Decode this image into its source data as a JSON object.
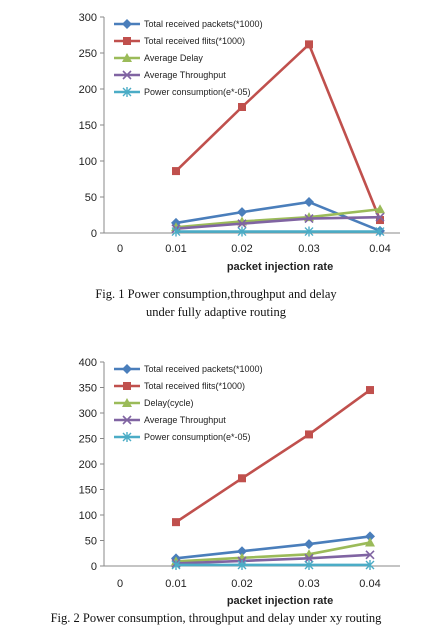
{
  "chart_data": [
    {
      "type": "line",
      "x": [
        0.01,
        0.02,
        0.03,
        0.04
      ],
      "x_ticks": [
        "0",
        "0.01",
        "0.02",
        "0.03",
        "0.04"
      ],
      "y_ticks": [
        "0",
        "50",
        "100",
        "150",
        "200",
        "250",
        "300"
      ],
      "ylim": [
        0,
        300
      ],
      "xlabel": "packet injection rate",
      "legend_position": "top-left inside",
      "grid": false,
      "caption_lines": [
        "Fig. 1 Power consumption,throughput and delay",
        "under  fully adaptive routing"
      ],
      "series": [
        {
          "name": "Total received packets(*1000)",
          "color": "#4a7ebb",
          "marker": "diamond",
          "values": [
            14,
            29,
            43,
            3
          ]
        },
        {
          "name": "Total received flits(*1000)",
          "color": "#c0504d",
          "marker": "square",
          "values": [
            86,
            175,
            262,
            18
          ]
        },
        {
          "name": "Average Delay",
          "color": "#9bbb59",
          "marker": "triangle",
          "values": [
            8,
            16,
            22,
            33
          ]
        },
        {
          "name": "Average Throughput",
          "color": "#8064a2",
          "marker": "x",
          "values": [
            6,
            13,
            20,
            22
          ]
        },
        {
          "name": "Power consumption(e*-05)",
          "color": "#4bacc6",
          "marker": "star",
          "values": [
            2,
            2,
            2,
            2
          ]
        }
      ]
    },
    {
      "type": "line",
      "x": [
        0.01,
        0.02,
        0.03,
        0.04
      ],
      "x_ticks": [
        "0",
        "0.01",
        "0.02",
        "0.03",
        "0.04"
      ],
      "y_ticks": [
        "0",
        "50",
        "100",
        "150",
        "200",
        "250",
        "300",
        "350",
        "400"
      ],
      "ylim": [
        0,
        400
      ],
      "xlabel": "packet injection rate",
      "legend_position": "top-left inside",
      "grid": false,
      "caption_lines": [
        "Fig. 2 Power consumption, throughput and delay under xy  routing"
      ],
      "series": [
        {
          "name": "Total received packets(*1000)",
          "color": "#4a7ebb",
          "marker": "diamond",
          "values": [
            15,
            29,
            43,
            58
          ]
        },
        {
          "name": "Total received flits(*1000)",
          "color": "#c0504d",
          "marker": "square",
          "values": [
            86,
            172,
            258,
            345
          ]
        },
        {
          "name": "Delay(cycle)",
          "color": "#9bbb59",
          "marker": "triangle",
          "values": [
            9,
            16,
            23,
            46
          ]
        },
        {
          "name": "Average Throughput",
          "color": "#8064a2",
          "marker": "x",
          "values": [
            5,
            10,
            15,
            22
          ]
        },
        {
          "name": "Power consumption(e*-05)",
          "color": "#4bacc6",
          "marker": "star",
          "values": [
            2,
            2,
            2,
            2
          ]
        }
      ]
    }
  ]
}
